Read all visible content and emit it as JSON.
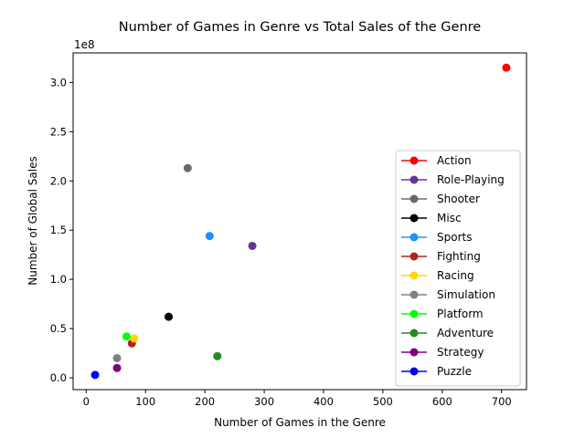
{
  "chart_data": {
    "type": "scatter",
    "title": "Number of Games in Genre vs Total Sales of the Genre",
    "xlabel": "Number of Games in the Genre",
    "ylabel": "Number of Global Sales",
    "y_offset_label": "1e8",
    "xlim": [
      -22,
      742
    ],
    "ylim": [
      -12000000.0,
      330000000.0
    ],
    "x_ticks": [
      0,
      100,
      200,
      300,
      400,
      500,
      600,
      700
    ],
    "x_tick_labels": [
      "0",
      "100",
      "200",
      "300",
      "400",
      "500",
      "600",
      "700"
    ],
    "y_ticks": [
      0,
      50000000,
      100000000,
      150000000,
      200000000,
      250000000,
      300000000
    ],
    "y_tick_labels": [
      "0.0",
      "0.5",
      "1.0",
      "1.5",
      "2.0",
      "2.5",
      "3.0"
    ],
    "grid": false,
    "legend_position": "lower-right",
    "series": [
      {
        "name": "Action",
        "color": "#ff0000",
        "x": 708,
        "y": 315000000
      },
      {
        "name": "Role-Playing",
        "color": "#663399",
        "x": 280,
        "y": 134000000
      },
      {
        "name": "Shooter",
        "color": "#696969",
        "x": 171,
        "y": 213000000
      },
      {
        "name": "Misc",
        "color": "#000000",
        "x": 139,
        "y": 62000000
      },
      {
        "name": "Sports",
        "color": "#1e90ff",
        "x": 208,
        "y": 144000000
      },
      {
        "name": "Fighting",
        "color": "#b22222",
        "x": 77,
        "y": 35000000
      },
      {
        "name": "Racing",
        "color": "#ffd700",
        "x": 81,
        "y": 40000000
      },
      {
        "name": "Simulation",
        "color": "#808080",
        "x": 52,
        "y": 20000000
      },
      {
        "name": "Platform",
        "color": "#00ff00",
        "x": 68,
        "y": 42000000
      },
      {
        "name": "Adventure",
        "color": "#228b22",
        "x": 221,
        "y": 22000000
      },
      {
        "name": "Strategy",
        "color": "#800080",
        "x": 52,
        "y": 10000000
      },
      {
        "name": "Puzzle",
        "color": "#0000ff",
        "x": 15,
        "y": 3000000
      }
    ]
  }
}
